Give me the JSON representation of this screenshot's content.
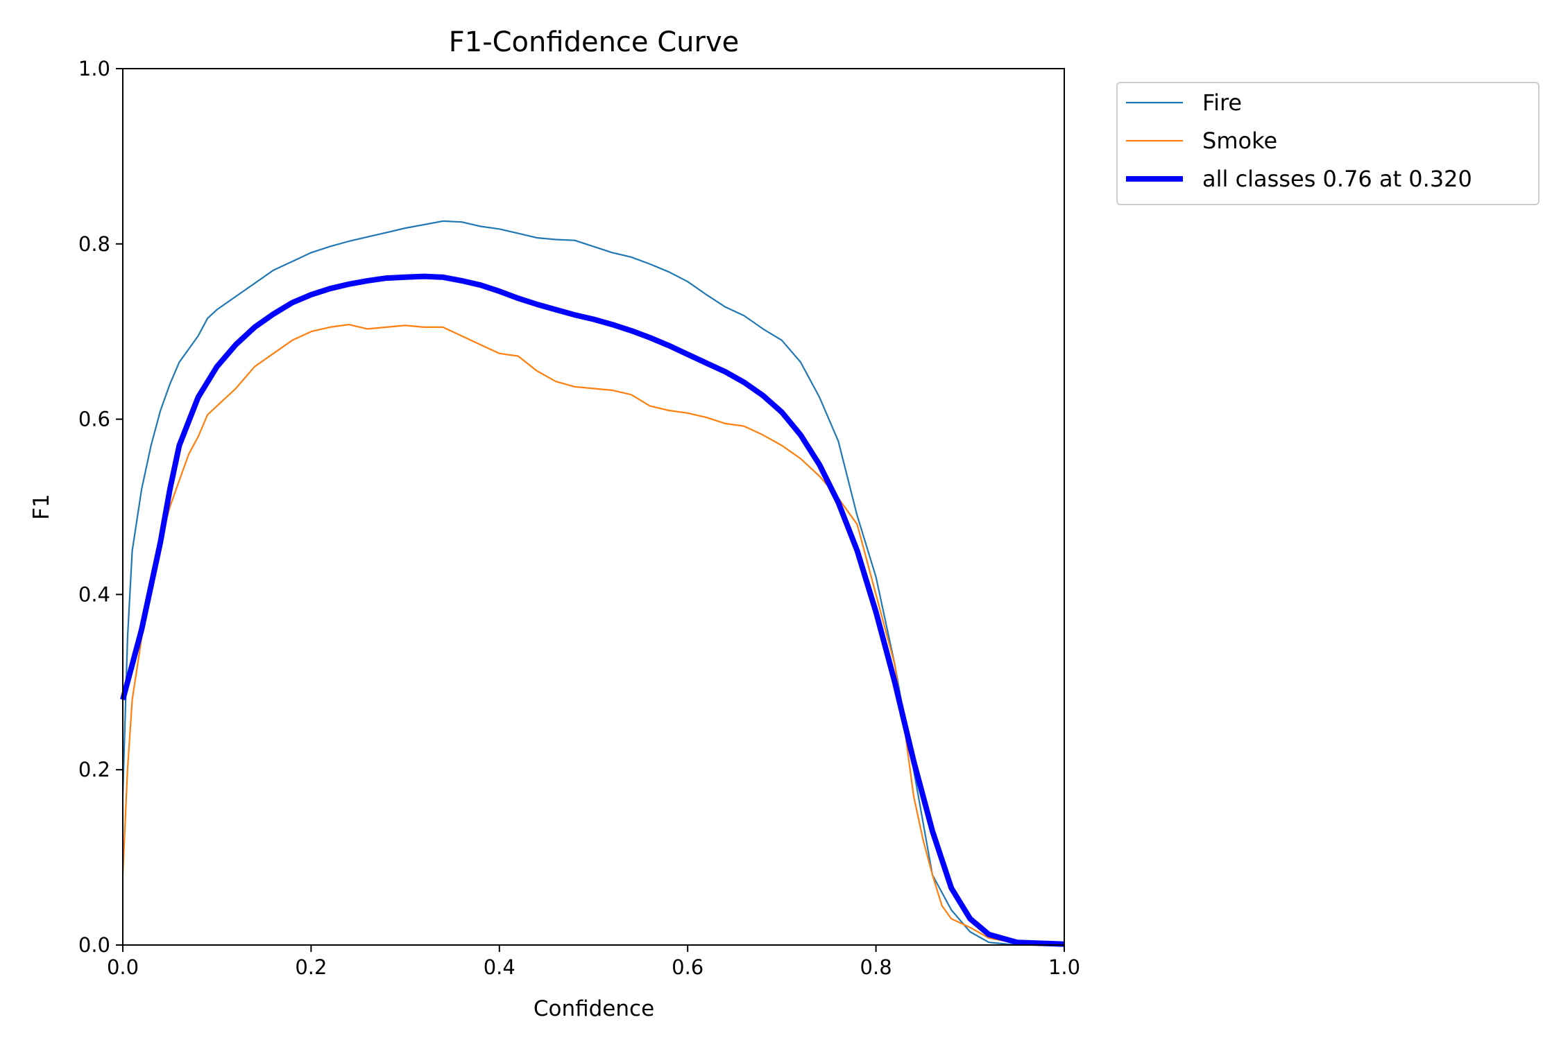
{
  "chart_data": {
    "type": "line",
    "title": "F1-Confidence Curve",
    "xlabel": "Confidence",
    "ylabel": "F1",
    "xlim": [
      0,
      1
    ],
    "ylim": [
      0,
      1
    ],
    "xticks": [
      "0.0",
      "0.2",
      "0.4",
      "0.6",
      "0.8",
      "1.0"
    ],
    "yticks": [
      "0.0",
      "0.2",
      "0.4",
      "0.6",
      "0.8",
      "1.0"
    ],
    "grid": false,
    "legend_position": "outside-top-right",
    "series": [
      {
        "name": "Fire",
        "color": "#1f77b4",
        "x": [
          0,
          0.005,
          0.01,
          0.02,
          0.03,
          0.04,
          0.05,
          0.06,
          0.07,
          0.08,
          0.09,
          0.1,
          0.12,
          0.14,
          0.16,
          0.18,
          0.2,
          0.22,
          0.24,
          0.26,
          0.28,
          0.3,
          0.32,
          0.34,
          0.36,
          0.38,
          0.4,
          0.42,
          0.44,
          0.46,
          0.48,
          0.5,
          0.52,
          0.54,
          0.56,
          0.58,
          0.6,
          0.62,
          0.64,
          0.66,
          0.68,
          0.7,
          0.72,
          0.74,
          0.76,
          0.78,
          0.8,
          0.82,
          0.84,
          0.86,
          0.88,
          0.9,
          0.92,
          0.95,
          1.0
        ],
        "y": [
          0.17,
          0.35,
          0.45,
          0.52,
          0.57,
          0.61,
          0.64,
          0.665,
          0.68,
          0.695,
          0.715,
          0.725,
          0.74,
          0.755,
          0.77,
          0.78,
          0.79,
          0.797,
          0.803,
          0.808,
          0.813,
          0.818,
          0.822,
          0.826,
          0.825,
          0.82,
          0.817,
          0.812,
          0.807,
          0.805,
          0.804,
          0.797,
          0.79,
          0.785,
          0.777,
          0.768,
          0.757,
          0.742,
          0.728,
          0.718,
          0.703,
          0.69,
          0.665,
          0.625,
          0.575,
          0.49,
          0.42,
          0.32,
          0.2,
          0.08,
          0.04,
          0.015,
          0.003,
          0,
          0
        ]
      },
      {
        "name": "Smoke",
        "color": "#ff7f0e",
        "x": [
          0,
          0.005,
          0.01,
          0.02,
          0.03,
          0.04,
          0.05,
          0.06,
          0.07,
          0.08,
          0.09,
          0.1,
          0.12,
          0.14,
          0.16,
          0.18,
          0.2,
          0.22,
          0.24,
          0.26,
          0.28,
          0.3,
          0.32,
          0.34,
          0.36,
          0.38,
          0.4,
          0.42,
          0.44,
          0.46,
          0.48,
          0.5,
          0.52,
          0.54,
          0.56,
          0.58,
          0.6,
          0.62,
          0.64,
          0.66,
          0.68,
          0.7,
          0.72,
          0.74,
          0.76,
          0.78,
          0.8,
          0.82,
          0.83,
          0.84,
          0.85,
          0.86,
          0.87,
          0.88,
          0.9,
          0.92,
          0.95,
          1.0
        ],
        "y": [
          0.08,
          0.2,
          0.28,
          0.35,
          0.41,
          0.46,
          0.5,
          0.53,
          0.56,
          0.58,
          0.605,
          0.615,
          0.635,
          0.66,
          0.675,
          0.69,
          0.7,
          0.705,
          0.708,
          0.703,
          0.705,
          0.707,
          0.705,
          0.705,
          0.695,
          0.685,
          0.675,
          0.672,
          0.655,
          0.643,
          0.637,
          0.635,
          0.633,
          0.628,
          0.615,
          0.61,
          0.607,
          0.602,
          0.595,
          0.592,
          0.582,
          0.57,
          0.555,
          0.535,
          0.51,
          0.48,
          0.4,
          0.32,
          0.25,
          0.17,
          0.12,
          0.08,
          0.045,
          0.03,
          0.02,
          0.008,
          0.002,
          0
        ]
      },
      {
        "name": "all classes 0.76 at 0.320",
        "color": "#0000ff",
        "x": [
          0,
          0.02,
          0.04,
          0.05,
          0.06,
          0.08,
          0.1,
          0.12,
          0.14,
          0.16,
          0.18,
          0.2,
          0.22,
          0.24,
          0.26,
          0.28,
          0.3,
          0.32,
          0.34,
          0.36,
          0.38,
          0.4,
          0.42,
          0.44,
          0.46,
          0.48,
          0.5,
          0.52,
          0.54,
          0.56,
          0.58,
          0.6,
          0.62,
          0.64,
          0.66,
          0.68,
          0.7,
          0.72,
          0.74,
          0.76,
          0.78,
          0.8,
          0.82,
          0.84,
          0.86,
          0.88,
          0.9,
          0.92,
          0.95,
          1.0
        ],
        "y": [
          0.28,
          0.36,
          0.46,
          0.52,
          0.57,
          0.625,
          0.66,
          0.685,
          0.705,
          0.72,
          0.733,
          0.742,
          0.749,
          0.754,
          0.758,
          0.761,
          0.762,
          0.763,
          0.762,
          0.758,
          0.753,
          0.746,
          0.738,
          0.731,
          0.725,
          0.719,
          0.714,
          0.708,
          0.701,
          0.693,
          0.684,
          0.674,
          0.664,
          0.654,
          0.642,
          0.627,
          0.608,
          0.582,
          0.548,
          0.505,
          0.45,
          0.38,
          0.3,
          0.21,
          0.13,
          0.065,
          0.03,
          0.012,
          0.003,
          0.001
        ]
      }
    ]
  }
}
